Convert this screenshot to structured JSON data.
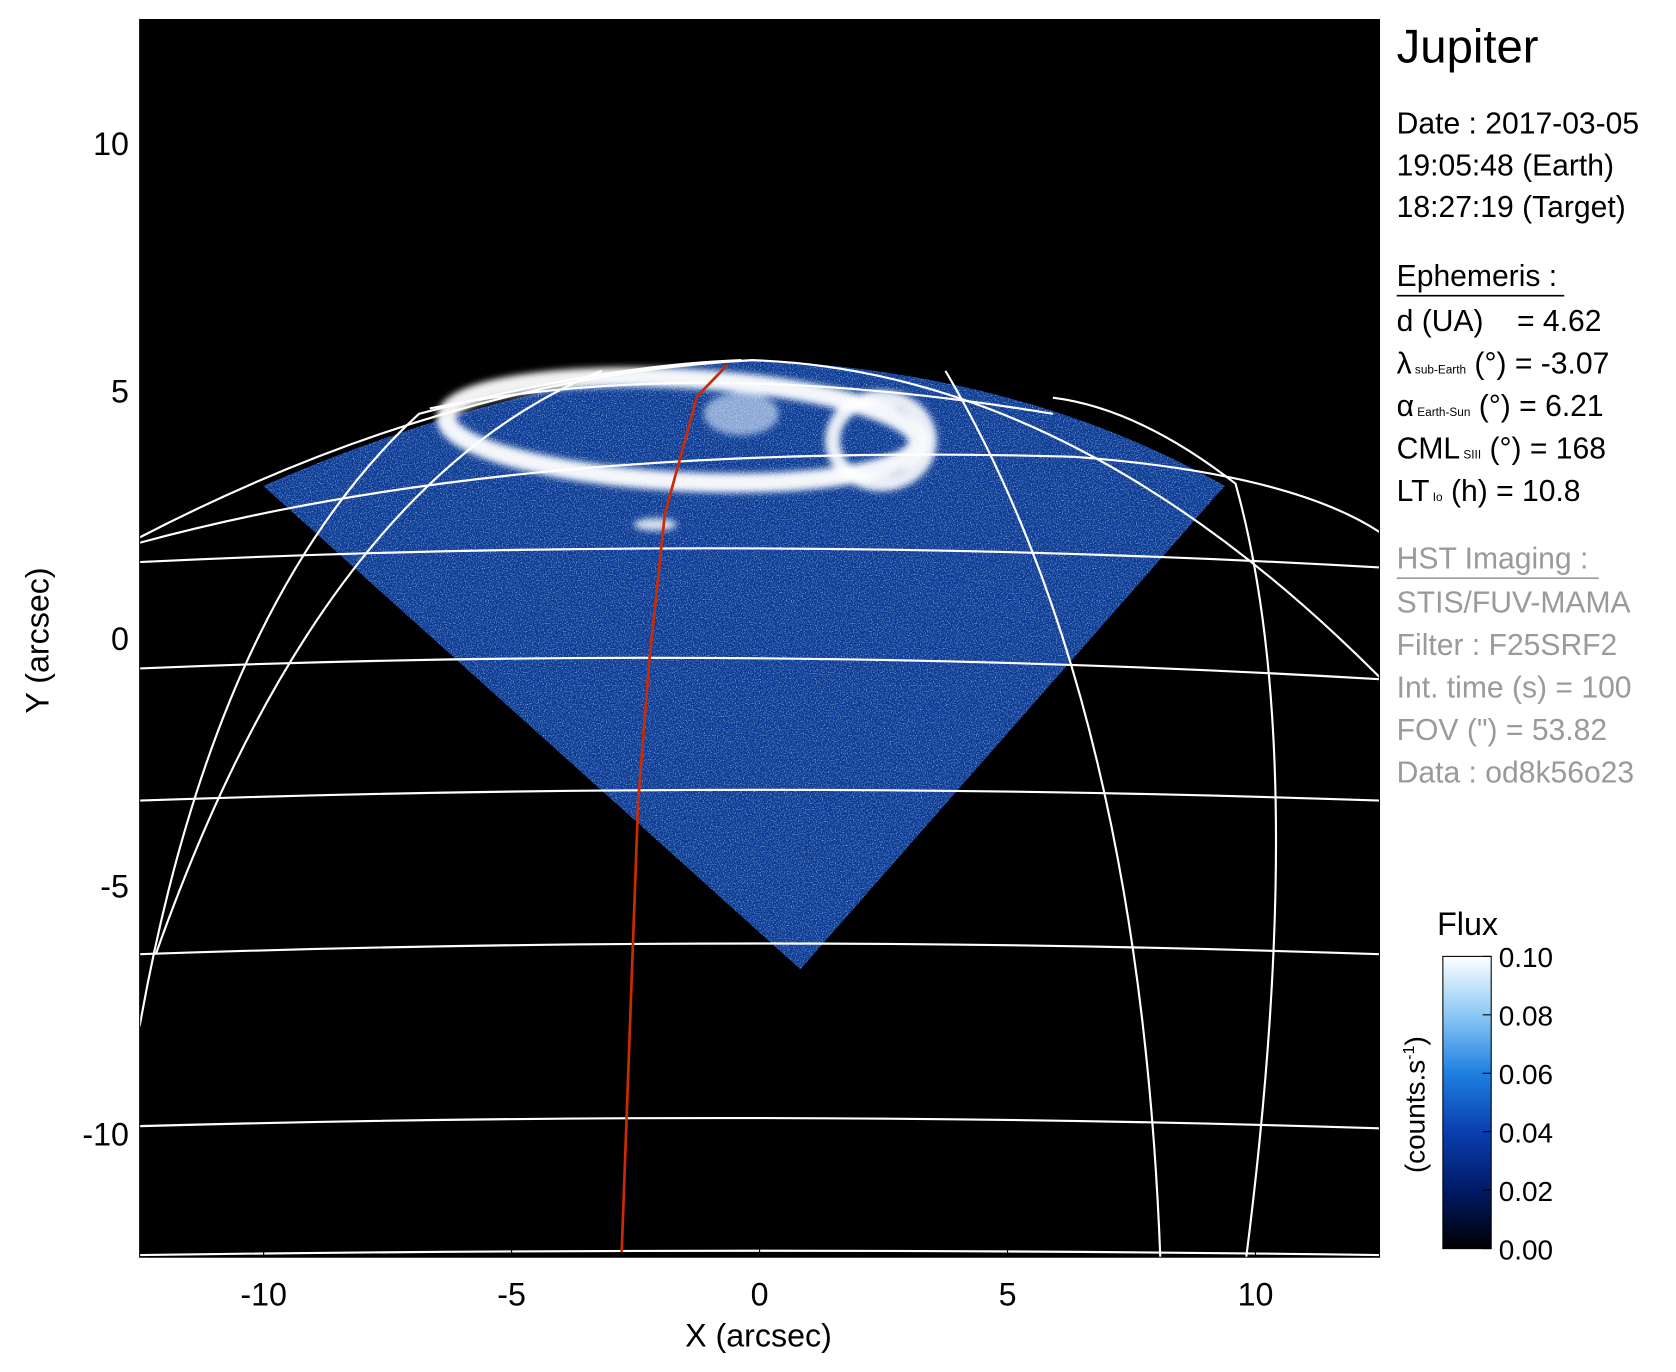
{
  "chart_data": {
    "type": "image",
    "xlabel": "X (arcsec)",
    "ylabel": "Y (arcsec)",
    "xlim": [
      -12.5,
      12.5
    ],
    "ylim": [
      -12.5,
      12.5
    ],
    "xticks": [
      -10,
      -5,
      0,
      5,
      10
    ],
    "yticks": [
      -10,
      -5,
      0,
      5,
      10
    ],
    "series": [
      {
        "color": "#cc2a00",
        "x": [
          -2.78,
          -2.45,
          -2.23,
          -1.91,
          -1.26,
          -0.65
        ],
        "y": [
          -12.4,
          -3.33,
          -0.52,
          2.51,
          4.89,
          5.52
        ]
      }
    ],
    "colorbar": {
      "title": "Flux",
      "label": {
        "main": "(counts.s",
        "sup": "-1",
        "end": ")"
      },
      "lim": [
        0,
        0.1
      ],
      "ticks": [
        {
          "value": 0,
          "label": "0.00"
        },
        {
          "value": 0.02,
          "label": "0.02"
        },
        {
          "value": 0.04,
          "label": "0.04"
        },
        {
          "value": 0.06,
          "label": "0.06"
        },
        {
          "value": 0.08,
          "label": "0.08"
        },
        {
          "value": 0.1,
          "label": "0.10"
        }
      ],
      "colors": [
        "#000000",
        "#001a66",
        "#0a3fb0",
        "#1e7fe0",
        "#8cc8f5",
        "#ffffff"
      ]
    },
    "info": {
      "target": "Jupiter",
      "date": [
        "Date : 2017-03-05",
        "19:05:48 (Earth)",
        "18:27:19 (Target)"
      ],
      "ephemeris_heading": "Ephemeris :",
      "ephemeris": [
        {
          "main": "d (UA)    = 4.62"
        },
        {
          "main": "λ",
          "sub": "sub-Earth",
          "tail": " (°) = -3.07"
        },
        {
          "main": "α",
          "sub": "Earth-Sun",
          "tail": " (°) = 6.21"
        },
        {
          "main": "CML",
          "sub": "SIII",
          "tail": " (°) = 168"
        },
        {
          "main": "LT",
          "sub": "Io",
          "tail": " (h) = 10.8"
        }
      ],
      "hst_heading": "HST Imaging :",
      "hst": [
        "STIS/FUV-MAMA",
        "Filter : F25SRF2",
        "Int. time (s) = 100",
        "FOV (\") = 53.82",
        "Data : od8k56o23"
      ]
    }
  }
}
